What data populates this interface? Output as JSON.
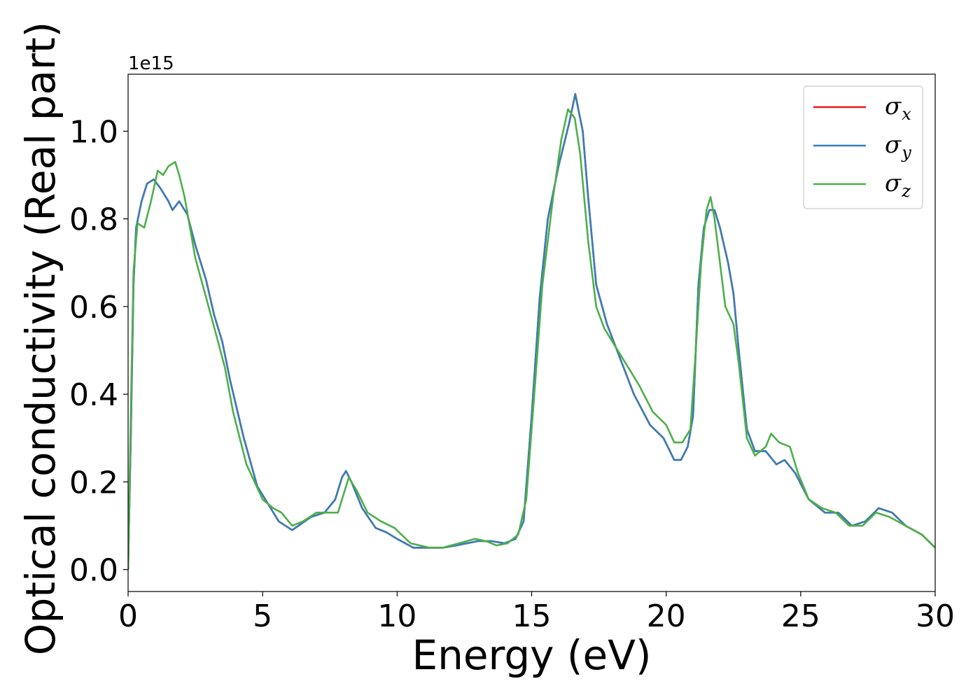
{
  "chart_data": {
    "type": "line",
    "xlabel": "Energy (eV)",
    "ylabel": "Optical conductivity (Real part)",
    "y_offset_label": "1e15",
    "xlim": [
      0,
      30
    ],
    "ylim": [
      -0.05,
      1.13
    ],
    "xticks": [
      0,
      5,
      10,
      15,
      20,
      25,
      30
    ],
    "xtick_labels": [
      "0",
      "5",
      "10",
      "15",
      "20",
      "25",
      "30"
    ],
    "yticks": [
      0.0,
      0.2,
      0.4,
      0.6,
      0.8,
      1.0
    ],
    "ytick_labels": [
      "0.0",
      "0.2",
      "0.4",
      "0.6",
      "0.8",
      "1.0"
    ],
    "grid": false,
    "legend_position": "top-right",
    "series": [
      {
        "name": "σ",
        "subscript": "x",
        "color": "#e41a1c",
        "x": [
          0,
          0.1,
          0.2,
          0.3,
          0.5,
          0.7,
          0.95,
          1.2,
          1.5,
          1.65,
          1.9,
          2.2,
          2.5,
          2.9,
          3.2,
          3.5,
          3.8,
          4.3,
          4.8,
          5.3,
          5.6,
          6.1,
          6.8,
          7.3,
          7.7,
          7.95,
          8.1,
          8.3,
          8.7,
          9.2,
          9.6,
          10.0,
          10.6,
          11.2,
          11.7,
          12.2,
          13.0,
          13.5,
          14.0,
          14.4,
          14.7,
          15.0,
          15.3,
          15.6,
          16.0,
          16.4,
          16.62,
          16.9,
          17.1,
          17.4,
          17.8,
          18.3,
          18.8,
          19.4,
          19.9,
          20.3,
          20.55,
          20.8,
          21.0,
          21.2,
          21.4,
          21.6,
          21.8,
          22.0,
          22.3,
          22.5,
          22.7,
          23.0,
          23.3,
          23.7,
          24.1,
          24.4,
          24.8,
          25.3,
          25.9,
          26.4,
          26.9,
          27.4,
          27.9,
          28.4,
          28.9,
          29.5,
          30.0
        ],
        "y": [
          0.0,
          0.3,
          0.65,
          0.78,
          0.84,
          0.88,
          0.89,
          0.87,
          0.84,
          0.82,
          0.84,
          0.81,
          0.74,
          0.66,
          0.58,
          0.52,
          0.43,
          0.3,
          0.19,
          0.14,
          0.11,
          0.09,
          0.12,
          0.13,
          0.16,
          0.21,
          0.225,
          0.2,
          0.14,
          0.095,
          0.085,
          0.07,
          0.05,
          0.05,
          0.05,
          0.055,
          0.065,
          0.065,
          0.06,
          0.07,
          0.11,
          0.35,
          0.62,
          0.8,
          0.92,
          1.02,
          1.085,
          1.0,
          0.85,
          0.65,
          0.56,
          0.48,
          0.4,
          0.33,
          0.3,
          0.25,
          0.25,
          0.28,
          0.35,
          0.65,
          0.78,
          0.82,
          0.82,
          0.78,
          0.7,
          0.63,
          0.5,
          0.32,
          0.27,
          0.27,
          0.24,
          0.25,
          0.22,
          0.16,
          0.13,
          0.13,
          0.1,
          0.11,
          0.14,
          0.13,
          0.1,
          0.08,
          0.05
        ]
      },
      {
        "name": "σ",
        "subscript": "y",
        "color": "#377eb8",
        "x": [
          0,
          0.1,
          0.2,
          0.3,
          0.5,
          0.7,
          0.95,
          1.2,
          1.5,
          1.65,
          1.9,
          2.2,
          2.5,
          2.9,
          3.2,
          3.5,
          3.8,
          4.3,
          4.8,
          5.3,
          5.6,
          6.1,
          6.8,
          7.3,
          7.7,
          7.95,
          8.1,
          8.3,
          8.7,
          9.2,
          9.6,
          10.0,
          10.6,
          11.2,
          11.7,
          12.2,
          13.0,
          13.5,
          14.0,
          14.4,
          14.7,
          15.0,
          15.3,
          15.6,
          16.0,
          16.4,
          16.62,
          16.9,
          17.1,
          17.4,
          17.8,
          18.3,
          18.8,
          19.4,
          19.9,
          20.3,
          20.55,
          20.8,
          21.0,
          21.2,
          21.4,
          21.6,
          21.8,
          22.0,
          22.3,
          22.5,
          22.7,
          23.0,
          23.3,
          23.7,
          24.1,
          24.4,
          24.8,
          25.3,
          25.9,
          26.4,
          26.9,
          27.4,
          27.9,
          28.4,
          28.9,
          29.5,
          30.0
        ],
        "y": [
          0.0,
          0.3,
          0.65,
          0.78,
          0.84,
          0.88,
          0.89,
          0.87,
          0.84,
          0.82,
          0.84,
          0.81,
          0.74,
          0.66,
          0.58,
          0.52,
          0.43,
          0.3,
          0.19,
          0.14,
          0.11,
          0.09,
          0.12,
          0.13,
          0.16,
          0.21,
          0.225,
          0.2,
          0.14,
          0.095,
          0.085,
          0.07,
          0.05,
          0.05,
          0.05,
          0.055,
          0.065,
          0.065,
          0.06,
          0.07,
          0.11,
          0.35,
          0.62,
          0.8,
          0.92,
          1.02,
          1.085,
          1.0,
          0.85,
          0.65,
          0.56,
          0.48,
          0.4,
          0.33,
          0.3,
          0.25,
          0.25,
          0.28,
          0.35,
          0.65,
          0.78,
          0.82,
          0.82,
          0.78,
          0.7,
          0.63,
          0.5,
          0.32,
          0.27,
          0.27,
          0.24,
          0.25,
          0.22,
          0.16,
          0.13,
          0.13,
          0.1,
          0.11,
          0.14,
          0.13,
          0.1,
          0.08,
          0.05
        ]
      },
      {
        "name": "σ",
        "subscript": "z",
        "color": "#4daf4a",
        "x": [
          0,
          0.1,
          0.2,
          0.35,
          0.6,
          0.85,
          1.1,
          1.3,
          1.5,
          1.75,
          1.9,
          2.1,
          2.5,
          2.9,
          3.3,
          3.6,
          3.9,
          4.4,
          5.0,
          5.4,
          5.7,
          6.1,
          6.5,
          7.0,
          7.4,
          7.8,
          8.0,
          8.2,
          8.5,
          8.9,
          9.4,
          9.9,
          10.5,
          11.2,
          11.7,
          12.3,
          12.9,
          13.3,
          13.7,
          14.1,
          14.5,
          14.8,
          15.1,
          15.4,
          15.8,
          16.1,
          16.35,
          16.6,
          16.8,
          17.1,
          17.4,
          17.7,
          18.1,
          18.6,
          19.0,
          19.5,
          20.0,
          20.3,
          20.6,
          20.9,
          21.1,
          21.3,
          21.5,
          21.65,
          21.8,
          22.0,
          22.2,
          22.5,
          22.7,
          23.0,
          23.3,
          23.7,
          23.9,
          24.2,
          24.6,
          24.9,
          25.3,
          25.8,
          26.3,
          26.8,
          27.3,
          27.8,
          28.3,
          28.9,
          29.5,
          30.0
        ],
        "y": [
          0.0,
          0.35,
          0.68,
          0.79,
          0.78,
          0.84,
          0.91,
          0.9,
          0.92,
          0.93,
          0.9,
          0.85,
          0.71,
          0.62,
          0.53,
          0.46,
          0.36,
          0.24,
          0.16,
          0.14,
          0.13,
          0.1,
          0.11,
          0.13,
          0.13,
          0.13,
          0.17,
          0.21,
          0.18,
          0.13,
          0.11,
          0.095,
          0.06,
          0.05,
          0.05,
          0.06,
          0.07,
          0.065,
          0.055,
          0.06,
          0.08,
          0.16,
          0.4,
          0.65,
          0.85,
          0.98,
          1.05,
          1.03,
          0.95,
          0.75,
          0.6,
          0.55,
          0.51,
          0.46,
          0.42,
          0.36,
          0.33,
          0.29,
          0.29,
          0.32,
          0.5,
          0.7,
          0.82,
          0.85,
          0.8,
          0.7,
          0.6,
          0.56,
          0.47,
          0.3,
          0.26,
          0.28,
          0.31,
          0.29,
          0.28,
          0.22,
          0.16,
          0.14,
          0.13,
          0.1,
          0.1,
          0.13,
          0.12,
          0.1,
          0.08,
          0.05
        ]
      }
    ]
  }
}
